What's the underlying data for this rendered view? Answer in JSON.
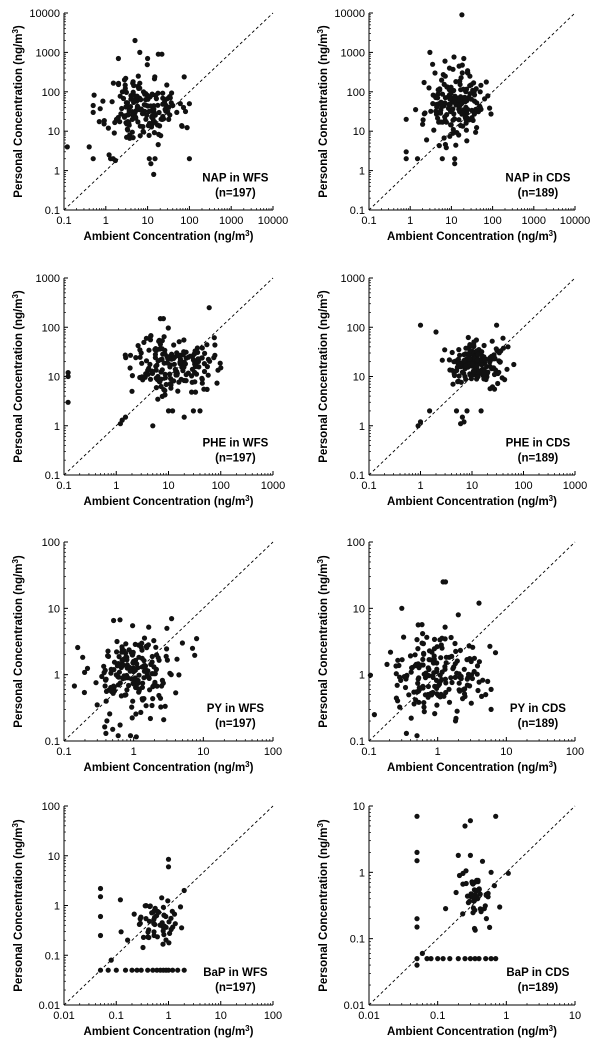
{
  "chart_data": [
    {
      "type": "scatter",
      "title": "",
      "xlabel": "Ambient Concentration (ng/m³)",
      "ylabel": "Personal Concentration (ng/m³)",
      "xscale": "log",
      "yscale": "log",
      "xlim": [
        0.1,
        10000
      ],
      "ylim": [
        0.1,
        10000
      ],
      "x_ticks": [
        "0.1",
        "1",
        "10",
        "100",
        "1000",
        "10000"
      ],
      "y_ticks": [
        "0.1",
        "1",
        "10",
        "100",
        "1000",
        "10000"
      ],
      "reference_line": "1:1 dashed",
      "annotation": [
        "NAP in WFS",
        "(n=197)"
      ],
      "points_seed": 11,
      "points": [
        [
          0.12,
          4
        ],
        [
          0.4,
          4
        ],
        [
          0.5,
          2
        ],
        [
          0.5,
          45
        ],
        [
          0.5,
          30
        ],
        [
          1.2,
          2.5
        ],
        [
          1.3,
          2
        ],
        [
          1.5,
          2
        ],
        [
          1.7,
          1.8
        ],
        [
          1.6,
          9
        ],
        [
          1.8,
          20
        ],
        [
          2,
          700
        ],
        [
          2.5,
          100
        ],
        [
          2.8,
          200
        ],
        [
          3,
          220
        ],
        [
          3.5,
          40
        ],
        [
          4,
          80
        ],
        [
          4.5,
          180
        ],
        [
          5,
          2000
        ],
        [
          6,
          250
        ],
        [
          6.5,
          1000
        ],
        [
          8,
          100
        ],
        [
          9,
          90
        ],
        [
          10,
          700
        ],
        [
          11,
          2
        ],
        [
          12,
          1.5
        ],
        [
          14,
          0.8
        ],
        [
          15,
          2
        ],
        [
          18,
          900
        ],
        [
          22,
          900
        ],
        [
          25,
          50
        ],
        [
          30,
          40
        ],
        [
          35,
          70
        ],
        [
          40,
          45
        ],
        [
          50,
          30
        ],
        [
          100,
          2
        ],
        [
          100,
          50
        ]
      ]
    },
    {
      "type": "scatter",
      "title": "",
      "xlabel": "Ambient Concentration (ng/m³)",
      "ylabel": "Personal Concentration (ng/m³)",
      "xscale": "log",
      "yscale": "log",
      "xlim": [
        0.1,
        10000
      ],
      "ylim": [
        0.1,
        10000
      ],
      "x_ticks": [
        "0.1",
        "1",
        "10",
        "100",
        "1000",
        "10000"
      ],
      "y_ticks": [
        "0.1",
        "1",
        "10",
        "100",
        "1000",
        "10000"
      ],
      "reference_line": "1:1 dashed",
      "annotation": [
        "NAP in CDS",
        "(n=189)"
      ],
      "points_seed": 23,
      "points": [
        [
          0.8,
          2
        ],
        [
          0.8,
          3
        ],
        [
          0.8,
          20
        ],
        [
          1.5,
          2
        ],
        [
          2,
          15
        ],
        [
          2.5,
          6
        ],
        [
          3,
          1000
        ],
        [
          3.5,
          500
        ],
        [
          4,
          300
        ],
        [
          5,
          50
        ],
        [
          6,
          2
        ],
        [
          7,
          600
        ],
        [
          9,
          400
        ],
        [
          12,
          1.5
        ],
        [
          12,
          2
        ],
        [
          15,
          8
        ],
        [
          18,
          9000
        ],
        [
          20,
          700
        ],
        [
          25,
          300
        ],
        [
          30,
          150
        ],
        [
          40,
          120
        ],
        [
          50,
          100
        ],
        [
          50,
          40
        ]
      ]
    },
    {
      "type": "scatter",
      "title": "",
      "xlabel": "Ambient Concentration (ng/m³)",
      "ylabel": "Personal Concentration (ng/m³)",
      "xscale": "log",
      "yscale": "log",
      "xlim": [
        0.1,
        1000
      ],
      "ylim": [
        0.1,
        1000
      ],
      "x_ticks": [
        "0.1",
        "1",
        "10",
        "100",
        "1000"
      ],
      "y_ticks": [
        "0.1",
        "1",
        "10",
        "100",
        "1000"
      ],
      "reference_line": "1:1 dashed",
      "annotation": [
        "PHE in WFS",
        "(n=197)"
      ],
      "points_seed": 37,
      "points": [
        [
          0.12,
          3
        ],
        [
          0.12,
          10
        ],
        [
          0.12,
          12
        ],
        [
          1.2,
          1.1
        ],
        [
          1.3,
          1.3
        ],
        [
          1.5,
          1.5
        ],
        [
          2,
          5
        ],
        [
          3,
          30
        ],
        [
          5,
          1
        ],
        [
          7,
          150
        ],
        [
          8,
          150
        ],
        [
          10,
          2
        ],
        [
          12,
          2
        ],
        [
          20,
          1.5
        ],
        [
          30,
          2
        ],
        [
          40,
          2
        ],
        [
          60,
          250
        ],
        [
          100,
          15
        ]
      ]
    },
    {
      "type": "scatter",
      "title": "",
      "xlabel": "Ambient Concentration (ng/m³)",
      "ylabel": "Personal Concentration (ng/m³)",
      "xscale": "log",
      "yscale": "log",
      "xlim": [
        0.1,
        1000
      ],
      "ylim": [
        0.1,
        1000
      ],
      "x_ticks": [
        "0.1",
        "1",
        "10",
        "100",
        "1000"
      ],
      "y_ticks": [
        "0.1",
        "1",
        "10",
        "100",
        "1000"
      ],
      "reference_line": "1:1 dashed",
      "annotation": [
        "PHE in CDS",
        "(n=189)"
      ],
      "points_seed": 41,
      "points": [
        [
          0.9,
          1
        ],
        [
          1,
          1.2
        ],
        [
          1,
          110
        ],
        [
          1.5,
          2
        ],
        [
          2,
          80
        ],
        [
          5,
          2
        ],
        [
          6,
          1.1
        ],
        [
          6.5,
          1.5
        ],
        [
          7,
          1.2
        ],
        [
          8,
          2
        ],
        [
          15,
          2
        ],
        [
          30,
          110
        ],
        [
          40,
          60
        ],
        [
          50,
          40
        ]
      ]
    },
    {
      "type": "scatter",
      "title": "",
      "xlabel": "Ambient Concentration (ng/m³)",
      "ylabel": "Personal Concentration (ng/m³)",
      "xscale": "log",
      "yscale": "log",
      "xlim": [
        0.1,
        100
      ],
      "ylim": [
        0.1,
        100
      ],
      "x_ticks": [
        "0.1",
        "1",
        "10",
        "100"
      ],
      "y_ticks": [
        "0.1",
        "1",
        "10",
        "100"
      ],
      "reference_line": "1:1 dashed",
      "annotation": [
        "PY in WFS",
        "(n=197)"
      ],
      "points_seed": 53,
      "points": [
        [
          0.3,
          0.35
        ],
        [
          0.4,
          0.13
        ],
        [
          0.5,
          0.15
        ],
        [
          0.6,
          0.12
        ],
        [
          0.9,
          0.12
        ],
        [
          3,
          5
        ],
        [
          3.5,
          7
        ],
        [
          5,
          3
        ],
        [
          7,
          2.5
        ],
        [
          8,
          3.5
        ]
      ]
    },
    {
      "type": "scatter",
      "title": "",
      "xlabel": "Ambient Concentration (ng/m³)",
      "ylabel": "Personal Concentration (ng/m³)",
      "xscale": "log",
      "yscale": "log",
      "xlim": [
        0.1,
        100
      ],
      "ylim": [
        0.1,
        100
      ],
      "x_ticks": [
        "0.1",
        "1",
        "10",
        "100"
      ],
      "y_ticks": [
        "0.1",
        "1",
        "10",
        "100"
      ],
      "reference_line": "1:1 dashed",
      "annotation": [
        "PY in CDS",
        "(n=189)"
      ],
      "points_seed": 67,
      "points": [
        [
          0.12,
          0.25
        ],
        [
          0.3,
          10
        ],
        [
          0.35,
          0.13
        ],
        [
          0.5,
          0.12
        ],
        [
          1.2,
          25
        ],
        [
          1.3,
          25
        ],
        [
          2,
          8
        ],
        [
          4,
          12
        ],
        [
          5,
          0.5
        ],
        [
          6,
          0.3
        ],
        [
          6,
          0.6
        ]
      ]
    },
    {
      "type": "scatter",
      "title": "",
      "xlabel": "Ambient Concentration (ng/m³)",
      "ylabel": "Personal Concentration (ng/m³)",
      "xscale": "log",
      "yscale": "log",
      "xlim": [
        0.01,
        100
      ],
      "ylim": [
        0.01,
        100
      ],
      "x_ticks": [
        "0.01",
        "0.1",
        "1",
        "10",
        "100"
      ],
      "y_ticks": [
        "0.01",
        "0.1",
        "1",
        "10",
        "100"
      ],
      "reference_line": "1:1 dashed",
      "annotation": [
        "BaP in WFS",
        "(n=197)"
      ],
      "points_seed": 79,
      "points": [
        [
          0.05,
          2.2
        ],
        [
          0.05,
          1.5
        ],
        [
          0.05,
          0.6
        ],
        [
          0.05,
          0.25
        ],
        [
          0.05,
          0.05
        ],
        [
          0.07,
          0.05
        ],
        [
          0.08,
          0.08
        ],
        [
          0.1,
          0.05
        ],
        [
          0.12,
          1.3
        ],
        [
          0.15,
          0.05
        ],
        [
          0.2,
          0.05
        ],
        [
          0.25,
          0.05
        ],
        [
          0.3,
          0.05
        ],
        [
          0.4,
          0.05
        ],
        [
          0.5,
          0.05
        ],
        [
          0.6,
          0.05
        ],
        [
          0.7,
          0.05
        ],
        [
          0.8,
          0.05
        ],
        [
          0.9,
          0.05
        ],
        [
          1,
          8.5
        ],
        [
          1,
          6
        ],
        [
          1,
          0.05
        ],
        [
          1.2,
          0.05
        ],
        [
          1.5,
          0.05
        ],
        [
          2,
          0.05
        ],
        [
          2,
          2
        ]
      ]
    },
    {
      "type": "scatter",
      "title": "",
      "xlabel": "Ambient Concentration (ng/m³)",
      "ylabel": "Personal Concentration (ng/m³)",
      "xscale": "log",
      "yscale": "log",
      "xlim": [
        0.01,
        10
      ],
      "ylim": [
        0.01,
        10
      ],
      "x_ticks": [
        "0.01",
        "0.1",
        "1",
        "10"
      ],
      "y_ticks": [
        "0.01",
        "0.1",
        "1",
        "10"
      ],
      "reference_line": "1:1 dashed",
      "annotation": [
        "BaP in CDS",
        "(n=189)"
      ],
      "points_seed": 97,
      "points": [
        [
          0.05,
          7
        ],
        [
          0.05,
          2
        ],
        [
          0.05,
          1.5
        ],
        [
          0.05,
          0.15
        ],
        [
          0.05,
          0.2
        ],
        [
          0.05,
          0.05
        ],
        [
          0.05,
          0.04
        ],
        [
          0.06,
          0.06
        ],
        [
          0.07,
          0.05
        ],
        [
          0.08,
          0.05
        ],
        [
          0.1,
          0.05
        ],
        [
          0.12,
          0.05
        ],
        [
          0.15,
          0.05
        ],
        [
          0.2,
          0.05
        ],
        [
          0.25,
          0.05
        ],
        [
          0.3,
          0.05
        ],
        [
          0.35,
          0.05
        ],
        [
          0.4,
          0.05
        ],
        [
          0.5,
          0.05
        ],
        [
          0.6,
          0.05
        ],
        [
          0.7,
          0.05
        ],
        [
          0.3,
          6
        ],
        [
          0.25,
          5
        ],
        [
          0.2,
          1.8
        ],
        [
          0.3,
          1.8
        ],
        [
          0.7,
          7
        ],
        [
          0.6,
          1
        ],
        [
          0.8,
          0.3
        ]
      ]
    }
  ],
  "page": {
    "ylabel_main": "Personal Concentration (ng/m",
    "xlabel_main": "Ambient Concentration (ng/m",
    "unit_sup": "3",
    "unit_close": ")"
  }
}
